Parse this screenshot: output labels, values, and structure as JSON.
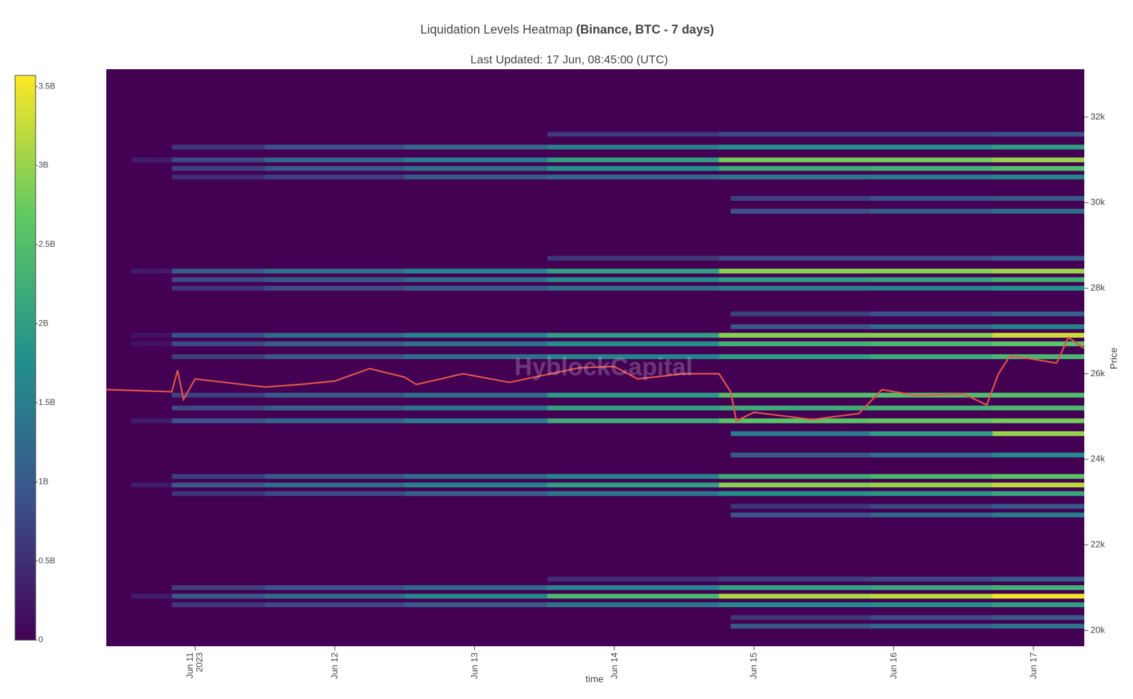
{
  "chart_data": {
    "type": "heatmap",
    "title": "Liquidation Levels Heatmap ",
    "title_bold": "(Binance, BTC - 7 days)",
    "subtitle": "Last Updated: 17 Jun, 08:45:00 (UTC)",
    "x_label": "time",
    "y_label": "Price",
    "watermark": "HyblockCapital",
    "background": "#440154",
    "colorscale": [
      "#440154",
      "#3b528b",
      "#21918c",
      "#5ec962",
      "#fde725"
    ],
    "zlim": [
      0,
      3.57
    ],
    "zticks": [
      0,
      {
        "value": 0.5,
        "label": "0.5B"
      },
      {
        "value": 1,
        "label": "1B"
      },
      {
        "value": 1.5,
        "label": "1.5B"
      },
      {
        "value": 2,
        "label": "2B"
      },
      {
        "value": 2.5,
        "label": "2.5B"
      },
      {
        "value": 3,
        "label": "3B"
      },
      {
        "value": 3.5,
        "label": "3.5B"
      }
    ],
    "xlim": [
      "2023-06-10T08:45",
      "2023-06-17T08:45"
    ],
    "xticks": [
      {
        "value": "2023-06-11T00:00",
        "label": "Jun 11\n2023"
      },
      {
        "value": "2023-06-12T00:00",
        "label": "Jun 12"
      },
      {
        "value": "2023-06-13T00:00",
        "label": "Jun 13"
      },
      {
        "value": "2023-06-14T00:00",
        "label": "Jun 14"
      },
      {
        "value": "2023-06-15T00:00",
        "label": "Jun 15"
      },
      {
        "value": "2023-06-16T00:00",
        "label": "Jun 16"
      },
      {
        "value": "2023-06-17T00:00",
        "label": "Jun 17"
      }
    ],
    "ylim": [
      19630,
      33120
    ],
    "yticks": [
      {
        "value": 20000,
        "label": "20k"
      },
      {
        "value": 22000,
        "label": "22k"
      },
      {
        "value": 24000,
        "label": "24k"
      },
      {
        "value": 26000,
        "label": "26k"
      },
      {
        "value": 28000,
        "label": "28k"
      },
      {
        "value": 30000,
        "label": "30k"
      },
      {
        "value": 32000,
        "label": "32k"
      }
    ],
    "times": [
      "2023-06-10T13:00",
      "2023-06-10T20:00",
      "2023-06-11T12:00",
      "2023-06-12T12:00",
      "2023-06-13T12:30",
      "2023-06-14T18:00",
      "2023-06-14T20:00",
      "2023-06-15T20:00",
      "2023-06-16T17:00"
    ],
    "levels": [
      {
        "price": 31600,
        "values": [
          null,
          null,
          null,
          null,
          0.6,
          0.8,
          0.8,
          0.8,
          0.9
        ]
      },
      {
        "price": 31300,
        "values": [
          0,
          0.6,
          0.9,
          1.2,
          1.5,
          1.8,
          1.8,
          1.8,
          2.0
        ]
      },
      {
        "price": 31000,
        "values": [
          0.3,
          0.8,
          1.2,
          1.5,
          2.0,
          2.8,
          2.8,
          2.8,
          3.0
        ]
      },
      {
        "price": 30800,
        "values": [
          0,
          0.7,
          1.0,
          1.3,
          1.8,
          2.2,
          2.2,
          2.3,
          2.5
        ]
      },
      {
        "price": 30600,
        "values": [
          0,
          0.5,
          0.7,
          1.0,
          1.2,
          1.4,
          1.4,
          1.5,
          1.6
        ]
      },
      {
        "price": 30100,
        "values": [
          null,
          null,
          null,
          null,
          null,
          null,
          0.7,
          0.9,
          1.0
        ]
      },
      {
        "price": 29800,
        "values": [
          null,
          null,
          null,
          null,
          null,
          null,
          0.9,
          1.1,
          1.3
        ]
      },
      {
        "price": 28700,
        "values": [
          null,
          null,
          null,
          null,
          0.6,
          0.8,
          0.8,
          0.8,
          1.0
        ]
      },
      {
        "price": 28400,
        "values": [
          0.3,
          1.0,
          1.3,
          1.6,
          2.0,
          2.9,
          2.9,
          2.9,
          3.0
        ]
      },
      {
        "price": 28200,
        "values": [
          0,
          0.8,
          1.0,
          1.3,
          1.7,
          2.0,
          2.0,
          2.1,
          2.3
        ]
      },
      {
        "price": 28000,
        "values": [
          0,
          0.6,
          0.8,
          1.0,
          1.3,
          1.5,
          1.5,
          1.6,
          1.8
        ]
      },
      {
        "price": 27400,
        "values": [
          null,
          null,
          null,
          null,
          null,
          null,
          0.7,
          0.9,
          1.1
        ]
      },
      {
        "price": 27100,
        "values": [
          null,
          null,
          null,
          null,
          null,
          null,
          1.0,
          1.3,
          1.6
        ]
      },
      {
        "price": 26900,
        "values": [
          0.2,
          0.9,
          1.3,
          1.6,
          2.0,
          2.9,
          2.9,
          2.9,
          3.3
        ]
      },
      {
        "price": 26700,
        "values": [
          0.2,
          0.8,
          1.1,
          1.4,
          1.8,
          2.3,
          2.3,
          2.4,
          2.6
        ]
      },
      {
        "price": 26400,
        "values": [
          0,
          0.7,
          1.0,
          1.3,
          1.6,
          2.0,
          2.0,
          2.2,
          2.4
        ]
      },
      {
        "price": 25500,
        "values": [
          0,
          0.7,
          1.0,
          1.3,
          1.9,
          2.5,
          2.5,
          2.5,
          2.5
        ]
      },
      {
        "price": 25200,
        "values": [
          0,
          0.8,
          1.1,
          1.4,
          2.0,
          2.2,
          2.2,
          2.3,
          2.4
        ]
      },
      {
        "price": 24900,
        "values": [
          0.3,
          0.9,
          1.2,
          1.5,
          2.2,
          2.6,
          2.6,
          2.7,
          2.8
        ]
      },
      {
        "price": 24600,
        "values": [
          null,
          null,
          null,
          null,
          null,
          null,
          1.5,
          2.0,
          3.0
        ]
      },
      {
        "price": 24100,
        "values": [
          null,
          null,
          null,
          null,
          null,
          null,
          1.0,
          1.3,
          1.7
        ]
      },
      {
        "price": 23600,
        "values": [
          0,
          0.7,
          1.0,
          1.3,
          1.6,
          2.2,
          2.2,
          2.4,
          2.6
        ]
      },
      {
        "price": 23400,
        "values": [
          0.3,
          1.0,
          1.3,
          1.6,
          2.0,
          2.9,
          2.9,
          3.0,
          3.2
        ]
      },
      {
        "price": 23200,
        "values": [
          0,
          0.6,
          0.8,
          1.1,
          1.4,
          1.8,
          1.8,
          1.9,
          2.1
        ]
      },
      {
        "price": 22900,
        "values": [
          null,
          null,
          null,
          null,
          null,
          null,
          0.6,
          0.8,
          1.0
        ]
      },
      {
        "price": 22700,
        "values": [
          null,
          null,
          null,
          null,
          null,
          null,
          0.9,
          1.2,
          1.5
        ]
      },
      {
        "price": 21200,
        "values": [
          null,
          null,
          null,
          null,
          0.5,
          0.7,
          0.7,
          0.8,
          1.0
        ]
      },
      {
        "price": 21000,
        "values": [
          0,
          0.7,
          0.9,
          1.2,
          1.6,
          2.0,
          2.0,
          2.1,
          2.3
        ]
      },
      {
        "price": 20800,
        "values": [
          0.3,
          1.0,
          1.3,
          1.7,
          2.4,
          3.1,
          3.1,
          3.2,
          3.5
        ]
      },
      {
        "price": 20600,
        "values": [
          0,
          0.6,
          0.8,
          1.0,
          1.4,
          1.7,
          1.7,
          1.8,
          2.0
        ]
      },
      {
        "price": 20300,
        "values": [
          null,
          null,
          null,
          null,
          null,
          null,
          0.6,
          0.8,
          1.0
        ]
      },
      {
        "price": 20100,
        "values": [
          null,
          null,
          null,
          null,
          null,
          null,
          1.0,
          1.2,
          1.4
        ]
      }
    ],
    "price_line": {
      "color": "#e4574b",
      "x": [
        "2023-06-10T08:45",
        "2023-06-10T20:00",
        "2023-06-10T21:00",
        "2023-06-10T22:00",
        "2023-06-11T00:00",
        "2023-06-11T12:00",
        "2023-06-11T18:00",
        "2023-06-12T00:00",
        "2023-06-12T06:00",
        "2023-06-12T12:00",
        "2023-06-12T14:00",
        "2023-06-12T22:00",
        "2023-06-13T06:00",
        "2023-06-13T12:00",
        "2023-06-13T18:00",
        "2023-06-14T00:00",
        "2023-06-14T04:00",
        "2023-06-14T12:00",
        "2023-06-14T18:00",
        "2023-06-14T20:00",
        "2023-06-14T21:00",
        "2023-06-15T00:00",
        "2023-06-15T10:00",
        "2023-06-15T18:00",
        "2023-06-15T22:00",
        "2023-06-16T04:00",
        "2023-06-16T12:00",
        "2023-06-16T16:00",
        "2023-06-16T18:00",
        "2023-06-16T20:00",
        "2023-06-17T00:00",
        "2023-06-17T04:00",
        "2023-06-17T06:00",
        "2023-06-17T08:45"
      ],
      "values": [
        25630,
        25580,
        26080,
        25400,
        25880,
        25690,
        25750,
        25830,
        26120,
        25920,
        25750,
        26000,
        25800,
        25970,
        26140,
        26170,
        25880,
        26000,
        26000,
        25580,
        24900,
        25100,
        24930,
        25070,
        25630,
        25490,
        25530,
        25270,
        26000,
        26420,
        26340,
        26250,
        26850,
        26590
      ]
    }
  }
}
